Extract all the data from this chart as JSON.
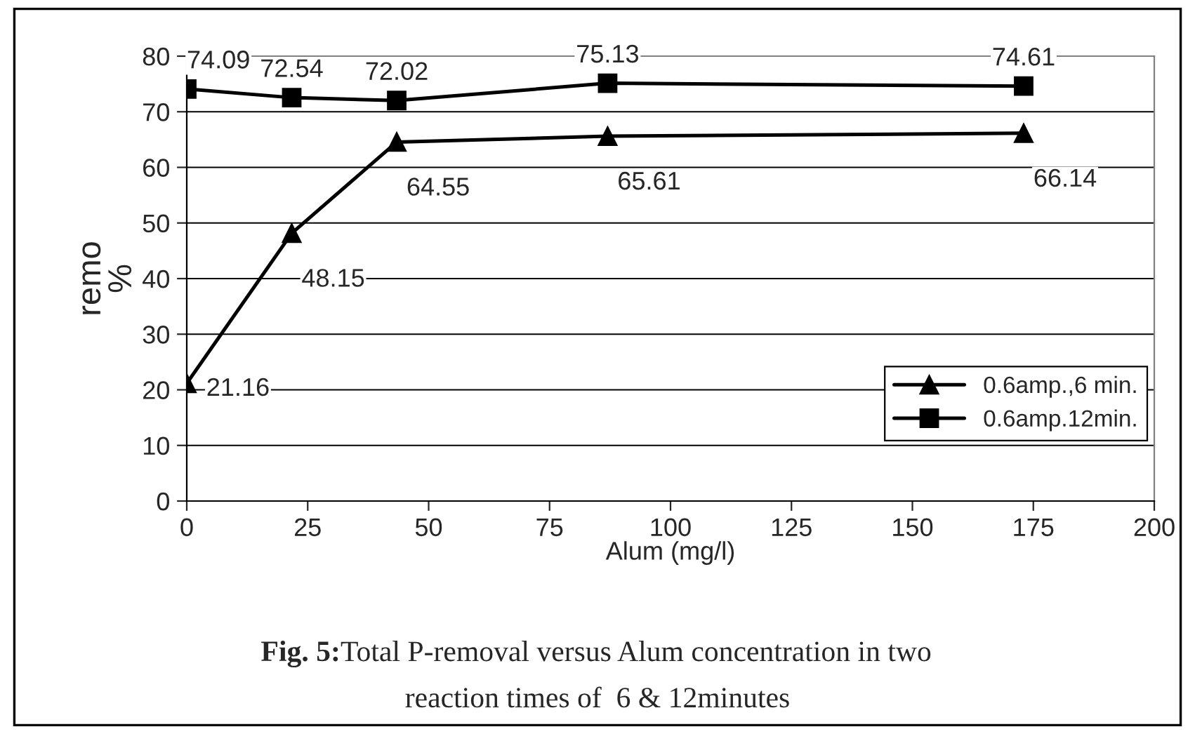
{
  "chart_data": {
    "type": "line",
    "xlabel": "Alum (mg/l)",
    "ylabel": "remo\n%",
    "x": [
      0,
      21.7,
      43.4,
      87,
      173
    ],
    "series": [
      {
        "name": "0.6amp.,6 min.",
        "color": "#000000",
        "marker": "triangle",
        "values": [
          21.16,
          48.15,
          64.55,
          65.61,
          66.14
        ]
      },
      {
        "name": "0.6amp.12min.",
        "color": "#000000",
        "marker": "square",
        "values": [
          74.09,
          72.54,
          72.02,
          75.13,
          74.61
        ]
      }
    ],
    "xlim": [
      0,
      200
    ],
    "xticks": [
      0,
      25,
      50,
      75,
      100,
      125,
      150,
      175,
      200
    ],
    "ylim": [
      0,
      80
    ],
    "yticks": [
      0,
      10,
      20,
      30,
      40,
      50,
      60,
      70,
      80
    ],
    "grid": "y",
    "legend": "bottom right",
    "data_labels": true,
    "line_style": "solid",
    "annotations": [
      "Fig. 5:",
      "Total P-removal versus Alum concentration in two",
      "reaction times of  6 & 12minutes"
    ]
  }
}
